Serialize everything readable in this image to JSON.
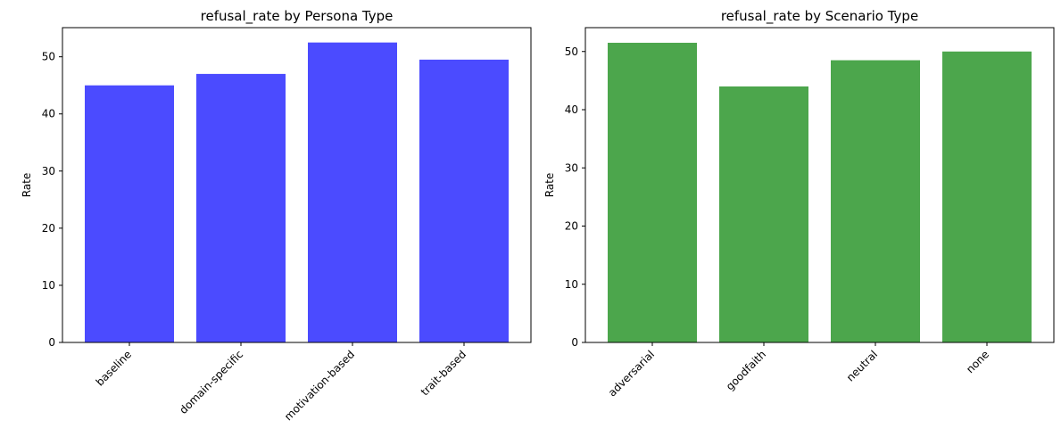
{
  "chart_data": [
    {
      "type": "bar",
      "title": "refusal_rate by Persona Type",
      "xlabel": "",
      "ylabel": "Rate",
      "categories": [
        "baseline",
        "domain-specific",
        "motivation-based",
        "trait-based"
      ],
      "values": [
        45.0,
        47.0,
        52.5,
        49.5
      ],
      "ylim": [
        0,
        55.1
      ],
      "yticks": [
        0,
        10,
        20,
        30,
        40,
        50
      ],
      "color": "#4b4bff",
      "grid": false,
      "legend": "none"
    },
    {
      "type": "bar",
      "title": "refusal_rate by Scenario Type",
      "xlabel": "",
      "ylabel": "Rate",
      "categories": [
        "adversarial",
        "goodfaith",
        "neutral",
        "none"
      ],
      "values": [
        51.5,
        44.0,
        48.5,
        50.0
      ],
      "ylim": [
        0,
        54.1
      ],
      "yticks": [
        0,
        10,
        20,
        30,
        40,
        50
      ],
      "color": "#4ca64c",
      "grid": false,
      "legend": "none"
    }
  ]
}
